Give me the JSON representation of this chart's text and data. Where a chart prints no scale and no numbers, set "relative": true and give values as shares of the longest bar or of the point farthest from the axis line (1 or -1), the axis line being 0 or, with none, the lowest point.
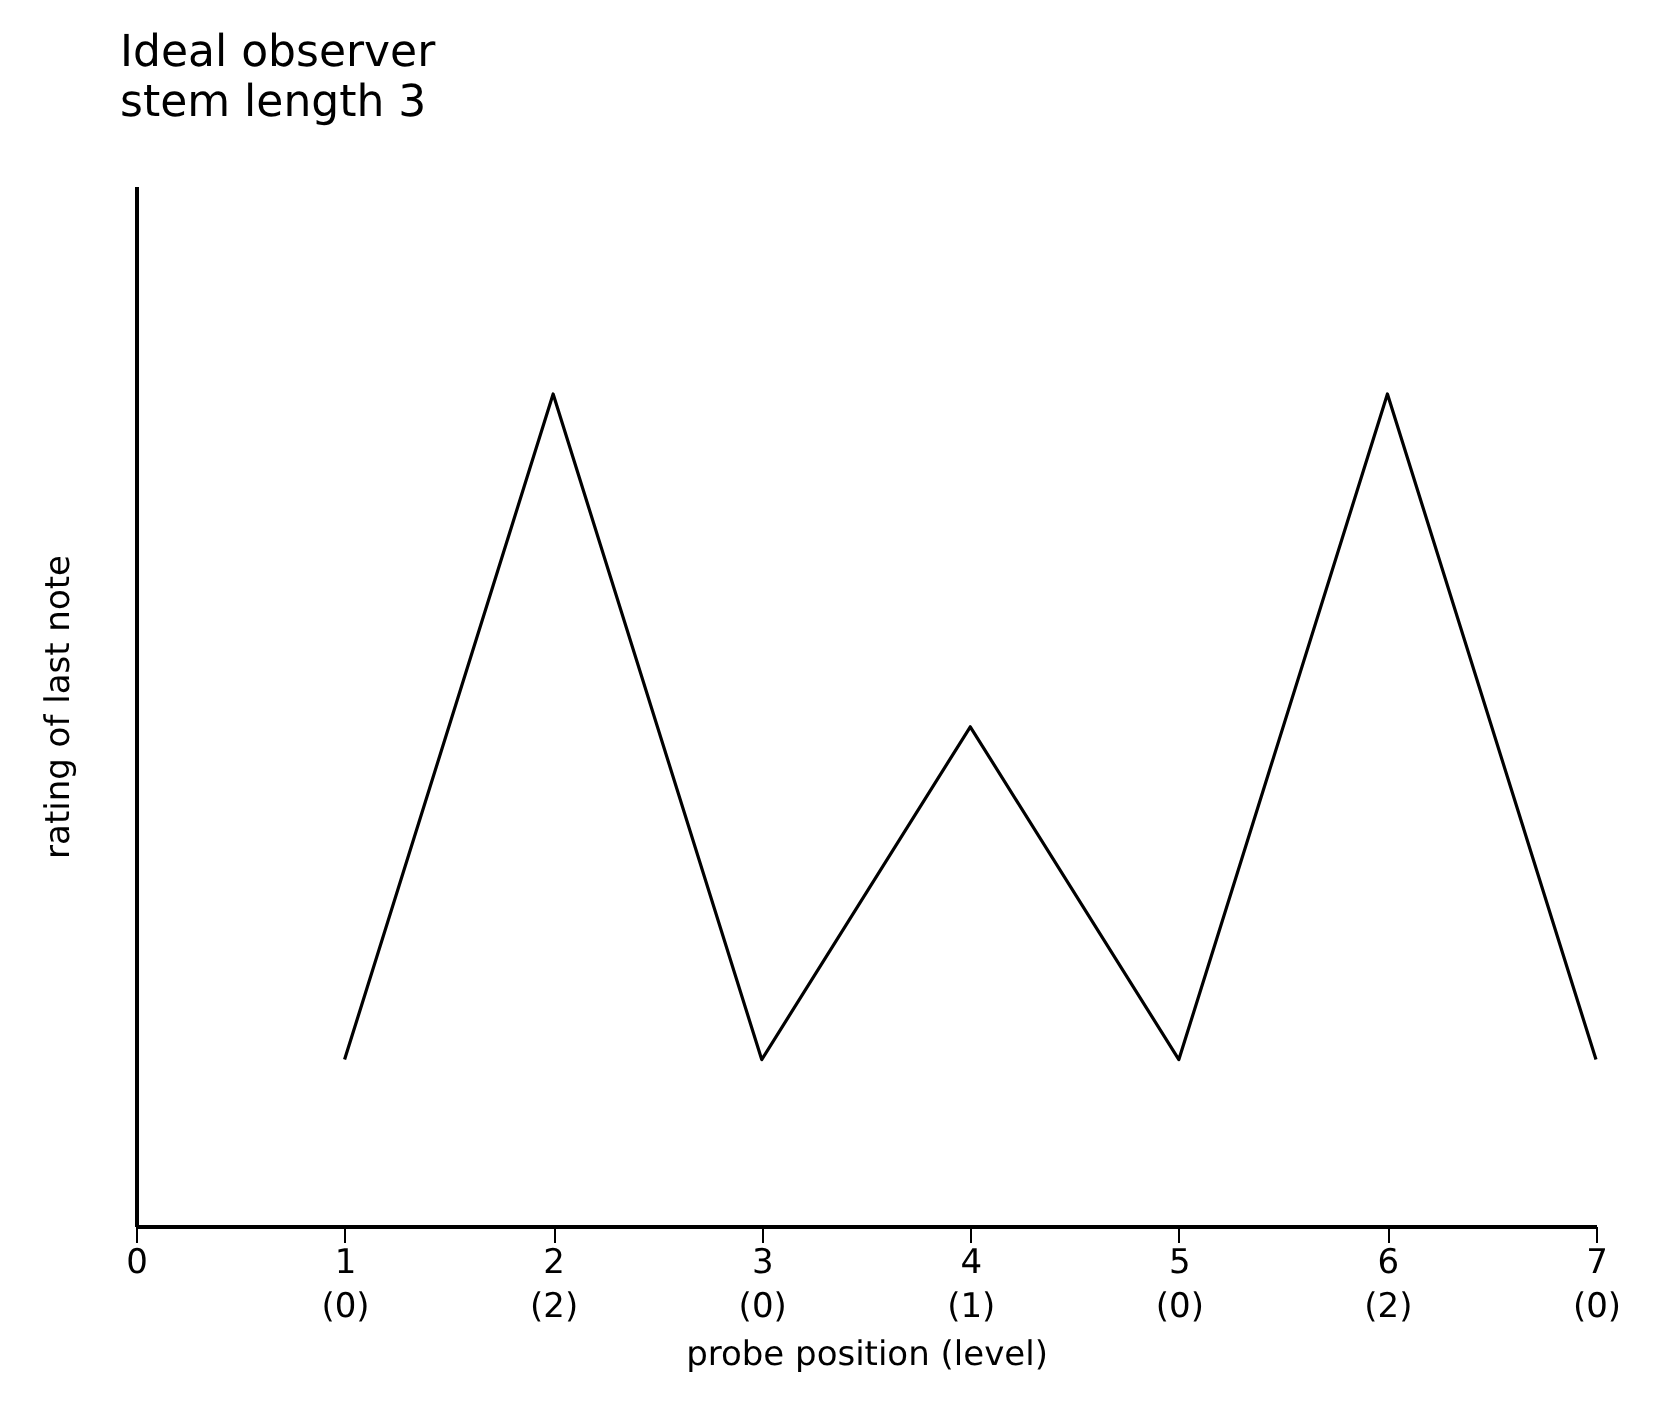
{
  "chart_data": {
    "type": "line",
    "title": "Ideal observer",
    "subtitle": "stem length 3",
    "xlabel": "probe position (level)",
    "ylabel": "rating of last note",
    "relative": true,
    "categories": [
      "0",
      "1\n(0)",
      "2\n(2)",
      "3\n(0)",
      "4\n(1)",
      "5\n(0)",
      "6\n(2)",
      "7\n(0)"
    ],
    "values": [
      null,
      0.2,
      1,
      0.2,
      0.6,
      0.2,
      1,
      0.2
    ],
    "color": "#000000",
    "grid": false,
    "marker": "none",
    "line_style": "solid"
  }
}
